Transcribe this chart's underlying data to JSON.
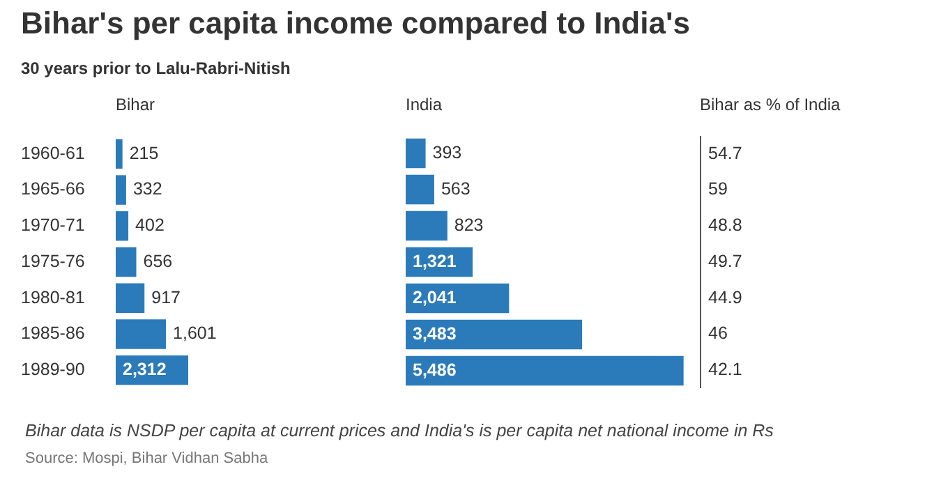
{
  "chart_data": [
    {
      "type": "bar",
      "orientation": "horizontal",
      "title": "Bihar's per capita income compared to India's",
      "subtitle": "30 years prior to Lalu-Rabri-Nitish",
      "legend_title": "Bihar",
      "categories": [
        "1960-61",
        "1965-66",
        "1970-71",
        "1975-76",
        "1980-81",
        "1985-86",
        "1989-90"
      ],
      "values": [
        215,
        332,
        402,
        656,
        917,
        1601,
        2312
      ],
      "value_labels": [
        "215",
        "332",
        "402",
        "656",
        "917",
        "1,601",
        "2,312"
      ],
      "color": "#2b7bba",
      "tick_labels": "y"
    },
    {
      "type": "bar",
      "orientation": "horizontal",
      "legend_title": "India",
      "categories": [
        "1960-61",
        "1965-66",
        "1970-71",
        "1975-76",
        "1980-81",
        "1985-86",
        "1989-90"
      ],
      "values": [
        393,
        563,
        823,
        1321,
        2041,
        3483,
        5486
      ],
      "value_labels": [
        "393",
        "563",
        "823",
        "1,321",
        "2,041",
        "3,483",
        "5,486"
      ],
      "color": "#2b7bba",
      "tick_labels": false
    },
    {
      "type": "other",
      "legend_title": "Bihar as % of India",
      "values": [
        54.7,
        59,
        48.8,
        49.7,
        44.9,
        46,
        42.1
      ],
      "data_labels": true,
      "annotations": [
        "Bihar data is NSDP per capita at current prices and India's is per capita net national income in Rs",
        "Source: Mospi, Bihar Vidhan Sabha"
      ]
    }
  ]
}
